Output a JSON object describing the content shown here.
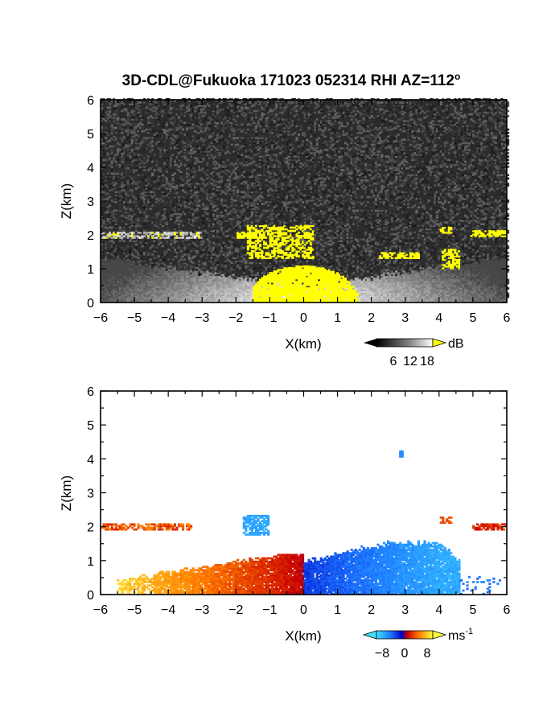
{
  "title": {
    "text": "3D-CDL@Fukuoka 171023 052314 RHI AZ=112",
    "superscript": "o"
  },
  "chart_data": [
    {
      "type": "heatmap",
      "panel": "top",
      "field": "SNR",
      "xlabel": "X(km)",
      "ylabel": "Z(km)",
      "xlim": [
        -6,
        6
      ],
      "ylim": [
        0,
        6
      ],
      "xticks": [
        -6,
        -5,
        -4,
        -3,
        -2,
        -1,
        0,
        1,
        2,
        3,
        4,
        5,
        6
      ],
      "yticks": [
        0,
        1,
        2,
        3,
        4,
        5,
        6
      ],
      "colorbar": {
        "unit": "dB",
        "ticks": [
          6,
          12,
          18
        ],
        "range": [
          0,
          20
        ],
        "over_color": "#ffff00"
      },
      "background_noise": "dark gray speckle",
      "features": [
        {
          "kind": "aerosol layer",
          "x_range": [
            -6,
            6
          ],
          "z_range": [
            0,
            1.3
          ],
          "value_db": "6-16, brightest near x=0"
        },
        {
          "kind": "strong echo near radar",
          "x_range": [
            -1.5,
            1.8
          ],
          "z_range": [
            0,
            1.1
          ],
          "value_db": ">18"
        },
        {
          "kind": "cloud base",
          "x_range": [
            -6,
            -3
          ],
          "z": 2.0,
          "value_db": "8-18"
        },
        {
          "kind": "cloud base",
          "x_range": [
            -2.0,
            -1.4
          ],
          "z": 2.0,
          "value_db": ">18"
        },
        {
          "kind": "cloud",
          "x_range": [
            -1.7,
            0.3
          ],
          "z_range": [
            1.3,
            2.3
          ],
          "value_db": ">18"
        },
        {
          "kind": "cloud",
          "x_range": [
            2.2,
            3.4
          ],
          "z_range": [
            1.3,
            1.5
          ],
          "value_db": ">18"
        },
        {
          "kind": "cloud",
          "x_range": [
            4.1,
            4.6
          ],
          "z_range": [
            1.0,
            1.6
          ],
          "value_db": ">18"
        },
        {
          "kind": "cloud base",
          "x_range": [
            4.0,
            4.4
          ],
          "z": 2.15,
          "value_db": ">18"
        },
        {
          "kind": "cloud base",
          "x_range": [
            4.9,
            6.0
          ],
          "z": 2.05,
          "value_db": ">18"
        }
      ]
    },
    {
      "type": "heatmap",
      "panel": "bottom",
      "field": "Doppler velocity",
      "xlabel": "X(km)",
      "ylabel": "Z(km)",
      "xlim": [
        -6,
        6
      ],
      "ylim": [
        0,
        6
      ],
      "xticks": [
        -6,
        -5,
        -4,
        -3,
        -2,
        -1,
        0,
        1,
        2,
        3,
        4,
        5,
        6
      ],
      "yticks": [
        0,
        1,
        2,
        3,
        4,
        5,
        6
      ],
      "colorbar": {
        "unit": "ms",
        "unit_superscript": "-1",
        "ticks": [
          -8,
          0,
          8
        ],
        "range": [
          -10,
          10
        ]
      },
      "features": [
        {
          "kind": "receding flow (warm colors)",
          "x_range": [
            -5.5,
            0
          ],
          "z_range": [
            0,
            1.2
          ],
          "velocity_ms": "0 to +8, strongest far from radar"
        },
        {
          "kind": "approaching flow (cool colors)",
          "x_range": [
            0,
            4.6
          ],
          "z_range": [
            0,
            1.6
          ],
          "velocity_ms": "-3 to -8"
        },
        {
          "kind": "cloud layer",
          "x_range": [
            -6,
            -3.3
          ],
          "z": 2.0,
          "velocity_ms": "+2 to +6"
        },
        {
          "kind": "cloud",
          "x_range": [
            -1.8,
            -1.0
          ],
          "z_range": [
            1.7,
            2.4
          ],
          "velocity_ms": "-8"
        },
        {
          "kind": "cloud",
          "x_range": [
            4.0,
            4.4
          ],
          "z": 2.2,
          "velocity_ms": "+3"
        },
        {
          "kind": "cloud",
          "x_range": [
            5.0,
            6.0
          ],
          "z": 2.0,
          "velocity_ms": "+1 to +3"
        },
        {
          "kind": "isolated echo",
          "x": 2.9,
          "z": 4.15,
          "velocity_ms": "-6"
        }
      ]
    }
  ]
}
